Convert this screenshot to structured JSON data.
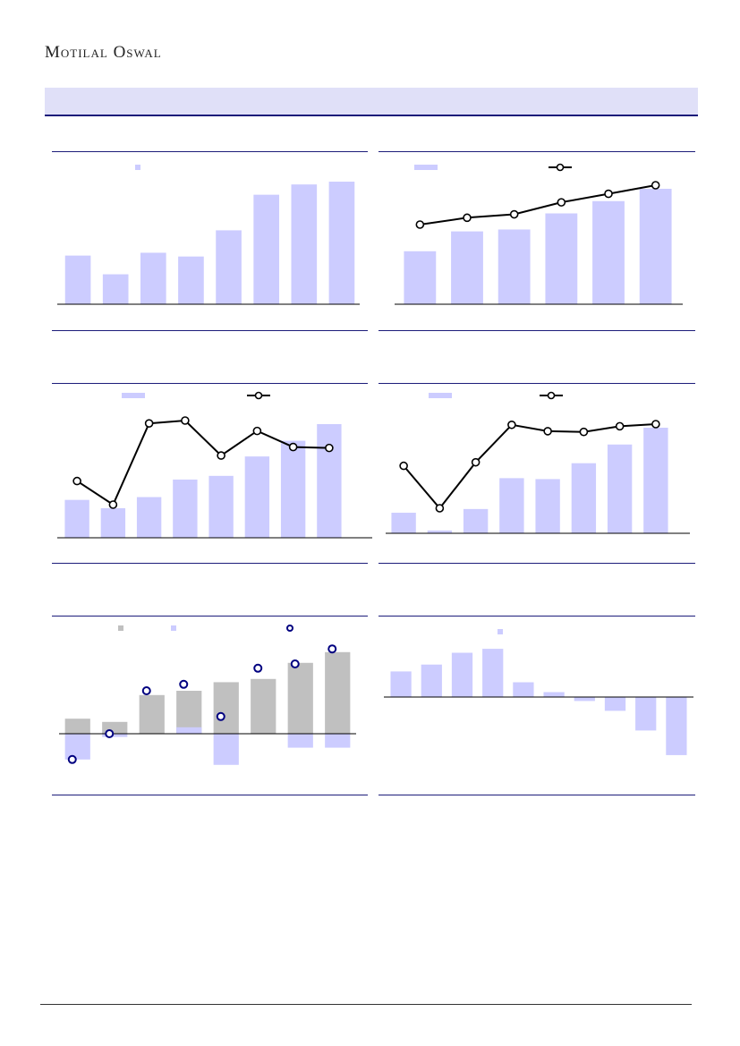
{
  "header": {
    "brand": "Motilal Oswal"
  },
  "colors": {
    "bar": "#ccccff",
    "line": "#000000",
    "marker_fill": "#ffffff",
    "grey_bar": "#c0c0c0",
    "dot_stroke": "#000080",
    "rule": "#1c1c7a"
  },
  "chart_data": [
    {
      "type": "bar",
      "series": [
        {
          "values": [
            52,
            32,
            55,
            51,
            79,
            117,
            128,
            131
          ]
        }
      ]
    },
    {
      "type": "bar+line",
      "series": [
        {
          "values": [
            56,
            77,
            79,
            96,
            109,
            122
          ]
        },
        {
          "values": [
            89,
            93,
            95,
            102,
            107,
            112
          ]
        }
      ]
    },
    {
      "type": "bar+line",
      "series": [
        {
          "values": [
            41,
            32,
            44,
            63,
            67,
            88,
            105,
            123
          ]
        },
        {
          "values": [
            23.5,
            21.0,
            29.6,
            29.9,
            26.2,
            28.8,
            27.1,
            27.0
          ]
        }
      ]
    },
    {
      "type": "bar+line",
      "series": [
        {
          "values": [
            22,
            3,
            26,
            59,
            58,
            75,
            95,
            113
          ]
        },
        {
          "values": [
            13.0,
            7.0,
            13.5,
            18.8,
            17.9,
            17.8,
            18.6,
            18.9
          ]
        }
      ]
    },
    {
      "type": "bar+scatter",
      "series": [
        {
          "values": [
            14,
            11,
            36,
            40,
            48,
            51,
            66,
            76
          ]
        },
        {
          "values": [
            -24,
            -3,
            0,
            6,
            -29,
            0,
            -13,
            -13
          ]
        },
        {
          "values": [
            -24,
            0,
            40,
            46,
            16,
            61,
            65,
            79
          ]
        }
      ]
    },
    {
      "type": "bar",
      "series": [
        {
          "values": [
            26,
            33,
            45,
            49,
            15,
            5,
            -4,
            -14,
            -34,
            -59
          ]
        }
      ]
    }
  ]
}
